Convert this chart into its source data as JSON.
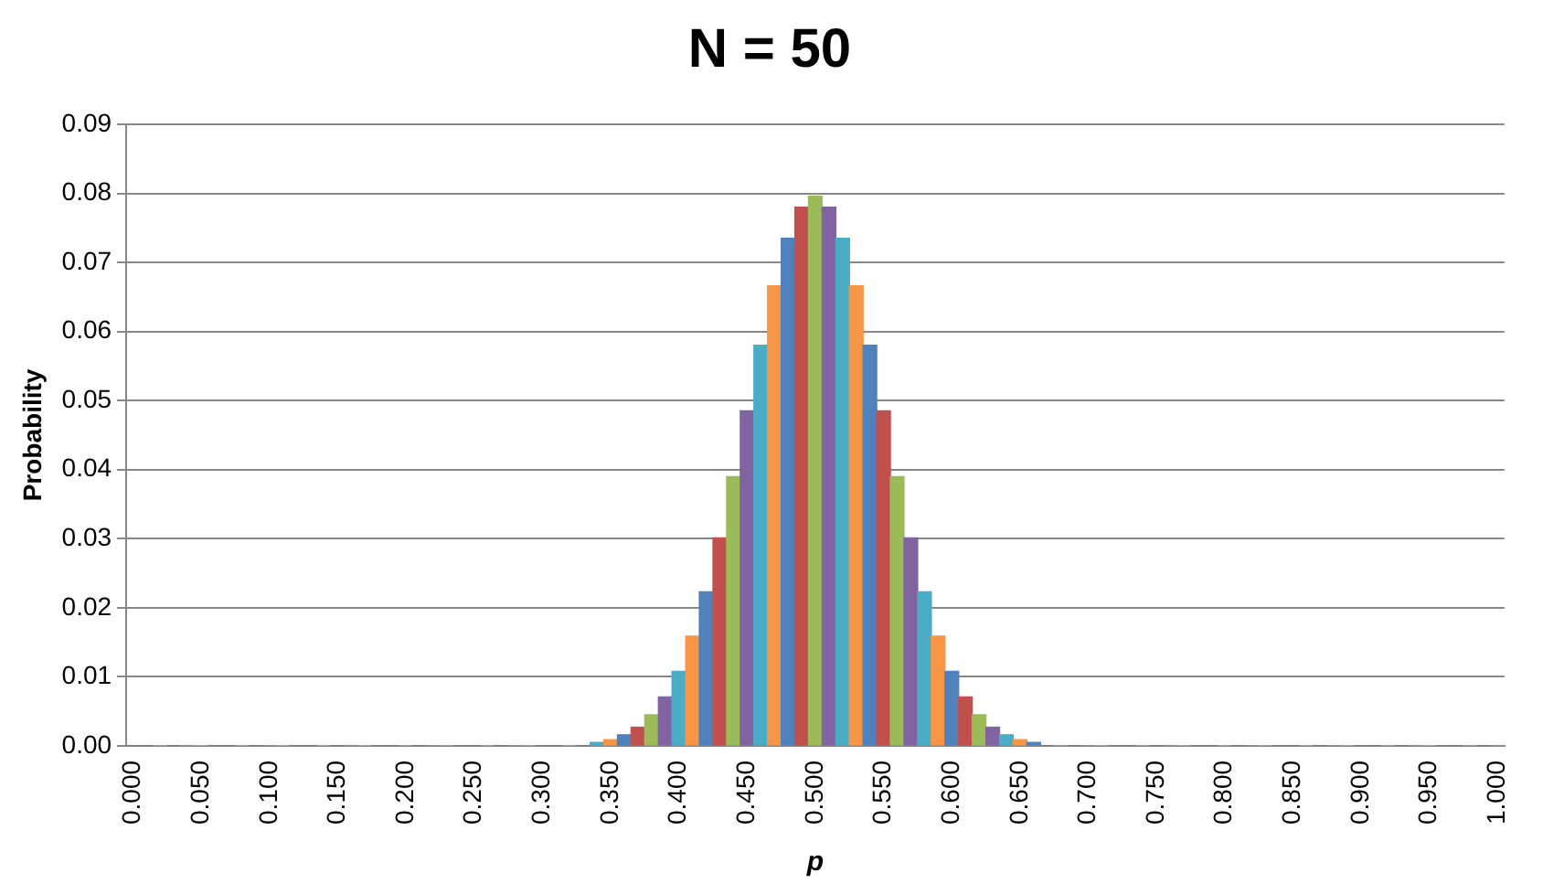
{
  "chart_data": {
    "type": "bar",
    "title": "N = 50",
    "xlabel": "p",
    "ylabel": "Probability",
    "categories": [
      "0.000",
      null,
      null,
      null,
      null,
      "0.050",
      null,
      null,
      null,
      null,
      "0.100",
      null,
      null,
      null,
      null,
      "0.150",
      null,
      null,
      null,
      null,
      "0.200",
      null,
      null,
      null,
      null,
      "0.250",
      null,
      null,
      null,
      null,
      "0.300",
      null,
      null,
      null,
      null,
      "0.350",
      null,
      null,
      null,
      null,
      "0.400",
      null,
      null,
      null,
      null,
      "0.450",
      null,
      null,
      null,
      null,
      "0.500",
      null,
      null,
      null,
      null,
      "0.550",
      null,
      null,
      null,
      null,
      "0.600",
      null,
      null,
      null,
      null,
      "0.650",
      null,
      null,
      null,
      null,
      "0.700",
      null,
      null,
      null,
      null,
      "0.750",
      null,
      null,
      null,
      null,
      "0.800",
      null,
      null,
      null,
      null,
      "0.850",
      null,
      null,
      null,
      null,
      "0.900",
      null,
      null,
      null,
      null,
      "0.950",
      null,
      null,
      null,
      null,
      "1.000"
    ],
    "values": [
      0,
      0,
      0,
      0,
      0,
      0,
      0,
      0,
      0,
      0,
      0,
      0,
      0,
      0,
      0,
      0,
      0,
      0,
      0,
      0,
      0,
      0,
      0,
      0,
      0,
      0,
      0,
      0,
      0,
      0,
      0,
      0,
      0,
      0,
      0.0005,
      0.0009,
      0.0016,
      0.0027,
      0.0045,
      0.0071,
      0.0108,
      0.0159,
      0.0223,
      0.0301,
      0.039,
      0.0485,
      0.058,
      0.0666,
      0.0735,
      0.078,
      0.0796,
      0.078,
      0.0735,
      0.0666,
      0.058,
      0.0485,
      0.039,
      0.0301,
      0.0223,
      0.0159,
      0.0108,
      0.0071,
      0.0045,
      0.0027,
      0.0016,
      0.0009,
      0.0005,
      0,
      0,
      0,
      0,
      0,
      0,
      0,
      0,
      0,
      0,
      0,
      0,
      0,
      0,
      0,
      0,
      0,
      0,
      0,
      0,
      0,
      0,
      0,
      0,
      0,
      0,
      0,
      0,
      0,
      0,
      0,
      0,
      0,
      0
    ],
    "colors": [
      "#4f81bd",
      "#c0504d",
      "#9bbb59",
      "#8064a2",
      "#4bacc6",
      "#f79646",
      "#4f81bd",
      "#c0504d",
      "#9bbb59",
      "#8064a2",
      "#4bacc6",
      "#f79646",
      "#4f81bd",
      "#c0504d",
      "#9bbb59",
      "#8064a2",
      "#4bacc6",
      "#f79646",
      "#4f81bd",
      "#c0504d",
      "#9bbb59",
      "#8064a2",
      "#4bacc6",
      "#f79646",
      "#4f81bd",
      "#c0504d",
      "#9bbb59",
      "#8064a2",
      "#4bacc6",
      "#f79646",
      "#4f81bd",
      "#c0504d",
      "#9bbb59",
      "#8064a2",
      "#4bacc6",
      "#f79646",
      "#4f81bd",
      "#c0504d",
      "#9bbb59",
      "#8064a2",
      "#4bacc6",
      "#f79646",
      "#4f81bd",
      "#c0504d",
      "#9bbb59",
      "#8064a2",
      "#4bacc6",
      "#f79646",
      "#4f81bd",
      "#c0504d",
      "#9bbb59",
      "#8064a2",
      "#4bacc6",
      "#f79646",
      "#4f81bd",
      "#c0504d",
      "#9bbb59",
      "#8064a2",
      "#4bacc6",
      "#f79646",
      "#4f81bd",
      "#c0504d",
      "#9bbb59",
      "#8064a2",
      "#4bacc6",
      "#f79646",
      "#4f81bd",
      "#c0504d",
      "#9bbb59",
      "#8064a2",
      "#4bacc6",
      "#f79646",
      "#4f81bd",
      "#c0504d",
      "#9bbb59",
      "#8064a2",
      "#4bacc6",
      "#f79646",
      "#4f81bd",
      "#c0504d",
      "#9bbb59",
      "#8064a2",
      "#4bacc6",
      "#f79646",
      "#4f81bd",
      "#c0504d",
      "#9bbb59",
      "#8064a2",
      "#4bacc6",
      "#f79646",
      "#4f81bd",
      "#c0504d",
      "#9bbb59",
      "#8064a2",
      "#4bacc6",
      "#f79646",
      "#4f81bd",
      "#c0504d",
      "#9bbb59",
      "#8064a2",
      "#4bacc6"
    ],
    "ylim": [
      0,
      0.09
    ],
    "yticks": [
      {
        "value": 0,
        "label": "0.00"
      },
      {
        "value": 0.01,
        "label": "0.01"
      },
      {
        "value": 0.02,
        "label": "0.02"
      },
      {
        "value": 0.03,
        "label": "0.03"
      },
      {
        "value": 0.04,
        "label": "0.04"
      },
      {
        "value": 0.05,
        "label": "0.05"
      },
      {
        "value": 0.06,
        "label": "0.06"
      },
      {
        "value": 0.07,
        "label": "0.07"
      },
      {
        "value": 0.08,
        "label": "0.08"
      },
      {
        "value": 0.09,
        "label": "0.09"
      }
    ],
    "grid": "y",
    "legend": false
  }
}
